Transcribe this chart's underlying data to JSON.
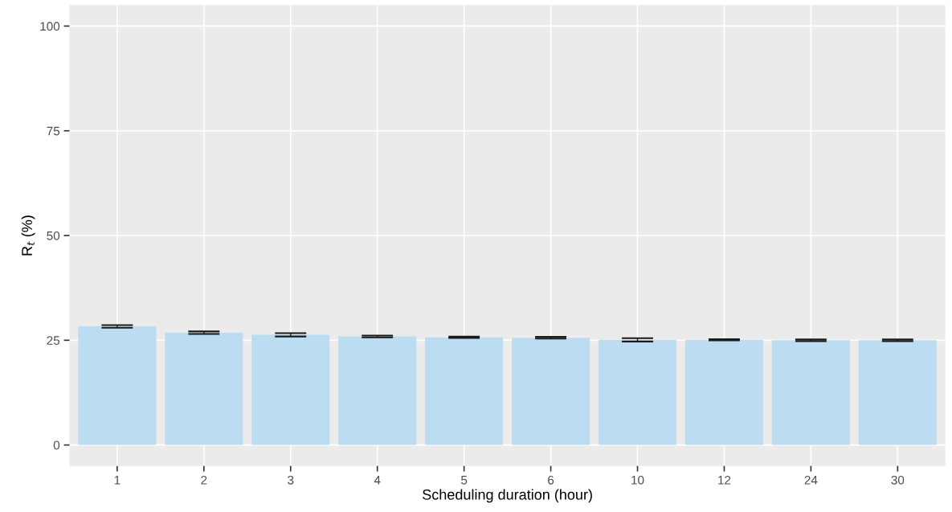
{
  "chart_data": {
    "type": "bar",
    "xlabel": "Scheduling duration (hour)",
    "ylabel": "R$_{t}$ (%)",
    "categories": [
      "1",
      "2",
      "3",
      "4",
      "5",
      "6",
      "10",
      "12",
      "24",
      "30"
    ],
    "values": [
      28.3,
      26.8,
      26.3,
      25.9,
      25.7,
      25.6,
      25.1,
      25.1,
      25.0,
      25.0
    ],
    "errors": [
      0.3,
      0.3,
      0.4,
      0.2,
      0.15,
      0.2,
      0.4,
      0.15,
      0.2,
      0.2
    ],
    "color": "#bcdcf2",
    "ylim": [
      -5,
      105
    ],
    "yticks": [
      0,
      25,
      50,
      75,
      100
    ],
    "grid": true
  }
}
